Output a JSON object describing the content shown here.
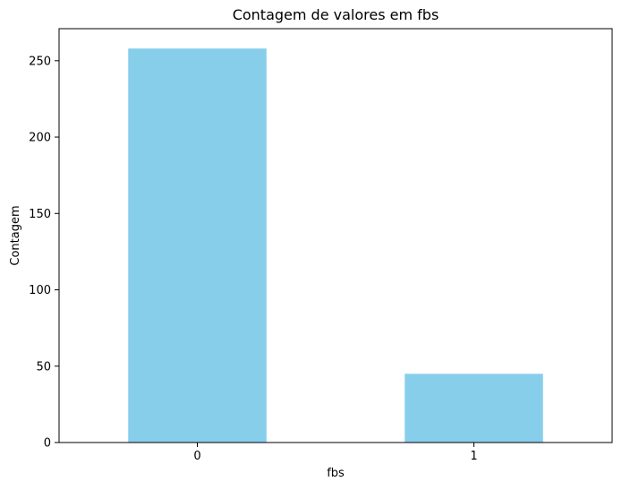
{
  "chart_data": {
    "type": "bar",
    "title": "Contagem de valores em fbs",
    "xlabel": "fbs",
    "ylabel": "Contagem",
    "categories": [
      "0",
      "1"
    ],
    "values": [
      258,
      45
    ],
    "ylim": [
      0,
      271
    ],
    "yticks": [
      0,
      50,
      100,
      150,
      200,
      250
    ],
    "bar_color": "#87ceeb",
    "grid": false,
    "legend": "none"
  }
}
